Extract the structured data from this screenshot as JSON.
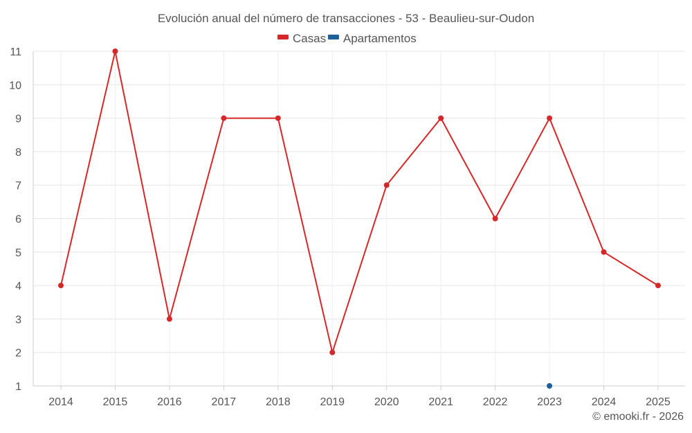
{
  "chart_data": {
    "type": "line",
    "title": "Evolución anual del número de transacciones - 53 - Beaulieu-sur-Oudon",
    "categories": [
      "2014",
      "2015",
      "2016",
      "2017",
      "2018",
      "2019",
      "2020",
      "2021",
      "2022",
      "2023",
      "2024",
      "2025"
    ],
    "series": [
      {
        "name": "Casas",
        "color": "#d62728",
        "values": [
          4,
          11,
          3,
          9,
          9,
          2,
          7,
          9,
          6,
          9,
          5,
          4
        ]
      },
      {
        "name": "Apartamentos",
        "color": "#1f5f99",
        "values": [
          null,
          null,
          null,
          null,
          null,
          null,
          null,
          null,
          null,
          1,
          null,
          null
        ]
      }
    ],
    "y_ticks": [
      "1",
      "2",
      "3",
      "4",
      "5",
      "6",
      "7",
      "8",
      "9",
      "10",
      "11"
    ],
    "ylim": [
      1,
      11
    ],
    "grid": true,
    "legend": "top-center",
    "xlabel": "",
    "ylabel": ""
  },
  "credit": "© emooki.fr - 2026"
}
